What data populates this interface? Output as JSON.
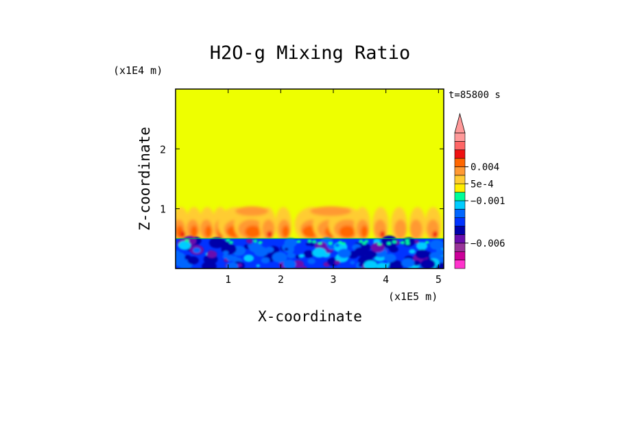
{
  "chart_data": {
    "type": "heatmap",
    "title": "H2O-g Mixing Ratio",
    "xlabel": "X-coordinate",
    "ylabel": "Z-coordinate",
    "x_unit": "(x1E5 m)",
    "y_unit": "(x1E4 m)",
    "time_label": "t=85800 s",
    "xlim": [
      0,
      5.1
    ],
    "ylim": [
      0,
      3.0
    ],
    "x_ticks": [
      1,
      2,
      3,
      4,
      5
    ],
    "y_ticks": [
      1,
      2
    ],
    "background_level_color": "#eeff00",
    "boundary_layer_top_z": 0.5,
    "plume_top_z": 1.05,
    "plume_centers_x": [
      0.1,
      0.35,
      0.6,
      0.85,
      1.15,
      1.45,
      1.75,
      2.05,
      2.6,
      2.95,
      3.25,
      3.55,
      3.9,
      4.25,
      4.6,
      4.9
    ],
    "colorbar": {
      "colors_bottom_to_top": [
        "#ff33cc",
        "#cc0099",
        "#993399",
        "#6a0dad",
        "#0000aa",
        "#0033ff",
        "#0066ff",
        "#00ccff",
        "#00ff99",
        "#ffee00",
        "#ffcc33",
        "#ff9933",
        "#ff6600",
        "#ee1111",
        "#ff6666",
        "#ff9999"
      ],
      "labels": [
        {
          "text": "0.004",
          "level_index": 12
        },
        {
          "text": "5e-4",
          "level_index": 10
        },
        {
          "text": "−0.001",
          "level_index": 8
        },
        {
          "text": "−0.006",
          "level_index": 3
        }
      ],
      "arrow_color": "#ff9999"
    }
  }
}
